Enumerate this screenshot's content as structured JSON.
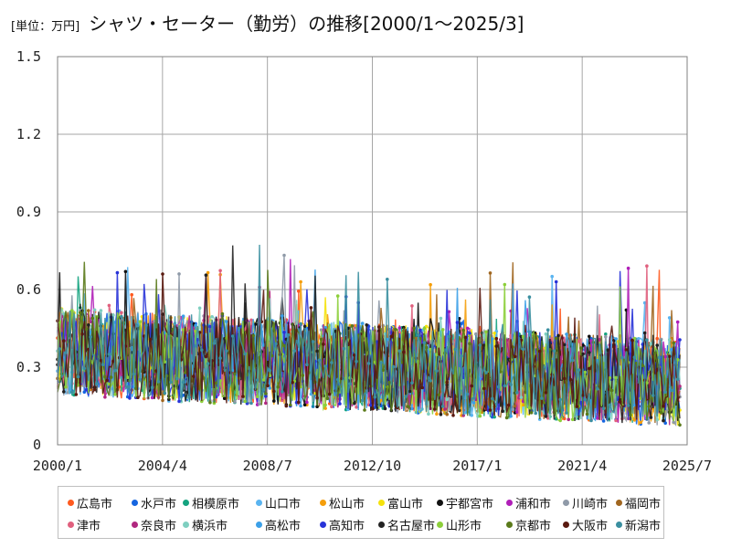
{
  "title": {
    "unit": "[単位：万円]",
    "text": "シャツ・セーター（勤労）の推移[2000/1～2025/3]"
  },
  "chart_data": {
    "type": "line",
    "title": "シャツ・セーター（勤労）の推移[2000/1～2025/3]",
    "unit": "[単位：万円]",
    "xlabel": "",
    "ylabel": "",
    "x_range": [
      "2000/1",
      "2025/7"
    ],
    "ylim": [
      0,
      1.5
    ],
    "x_ticks": [
      "2000/1",
      "2004/4",
      "2008/7",
      "2012/10",
      "2017/1",
      "2021/4",
      "2025/7"
    ],
    "y_ticks": [
      "0",
      "0.3",
      "0.6",
      "0.9",
      "1.2",
      "1.5"
    ],
    "grid": true,
    "legend_position": "bottom",
    "series": [
      {
        "name": "広島市",
        "color": "#ff5a1f"
      },
      {
        "name": "水戸市",
        "color": "#1565e0"
      },
      {
        "name": "相模原市",
        "color": "#14a37f"
      },
      {
        "name": "山口市",
        "color": "#5ab4f0"
      },
      {
        "name": "松山市",
        "color": "#f59e0b"
      },
      {
        "name": "富山市",
        "color": "#f5e20b"
      },
      {
        "name": "宇都宮市",
        "color": "#111111"
      },
      {
        "name": "浦和市",
        "color": "#b01fb8"
      },
      {
        "name": "川崎市",
        "color": "#8f9aa8"
      },
      {
        "name": "福岡市",
        "color": "#a0661f"
      },
      {
        "name": "津市",
        "color": "#e0607e"
      },
      {
        "name": "奈良市",
        "color": "#b0287f"
      },
      {
        "name": "横浜市",
        "color": "#7fcfc0"
      },
      {
        "name": "高松市",
        "color": "#3ba0e8"
      },
      {
        "name": "高知市",
        "color": "#2833d8"
      },
      {
        "name": "名古屋市",
        "color": "#222222"
      },
      {
        "name": "山形市",
        "color": "#8ccf3a"
      },
      {
        "name": "京都市",
        "color": "#5a7a1a"
      },
      {
        "name": "大阪市",
        "color": "#5a1a10"
      },
      {
        "name": "新潟市",
        "color": "#3a8fa0"
      }
    ]
  }
}
